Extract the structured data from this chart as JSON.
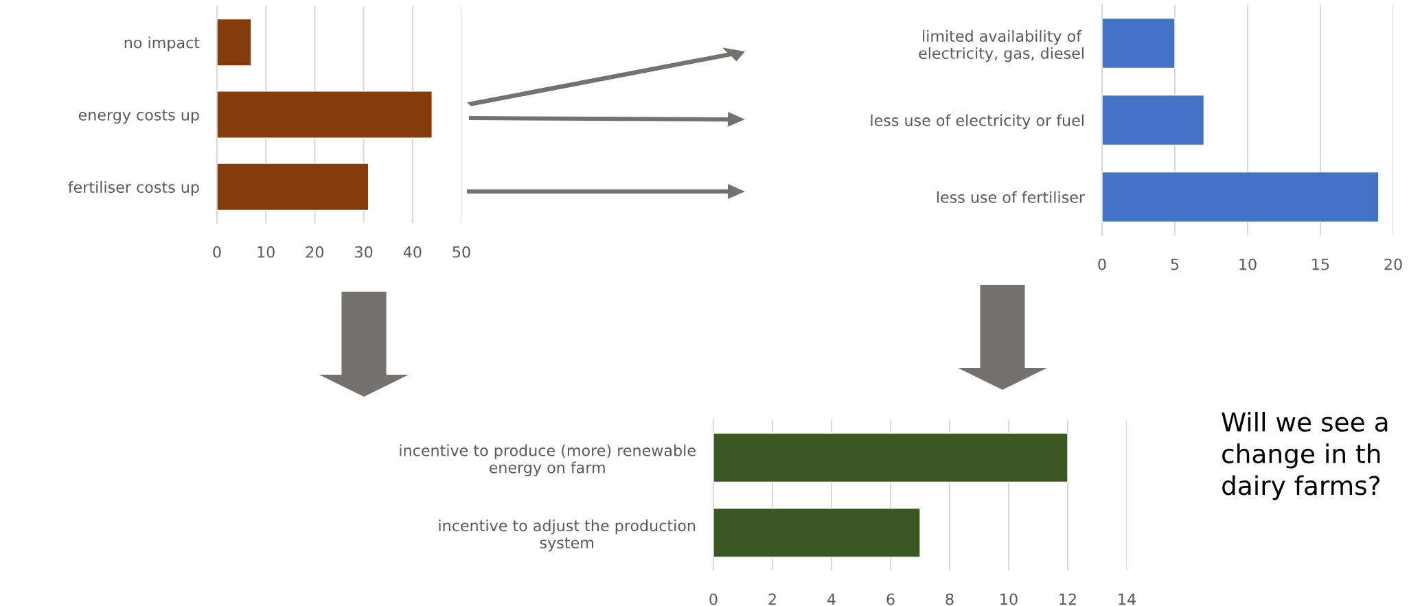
{
  "chart_data": [
    {
      "type": "bar",
      "orientation": "horizontal",
      "categories": [
        "no impact",
        "energy costs up",
        "fertiliser costs up"
      ],
      "values": [
        7,
        44,
        31
      ],
      "color": "#843c0c",
      "xlim": [
        0,
        50
      ],
      "xticks": [
        0,
        10,
        20,
        30,
        40,
        50
      ],
      "grid": "x"
    },
    {
      "type": "bar",
      "orientation": "horizontal",
      "categories": [
        "limited availability of\nelectricity, gas, diesel",
        "less use of electricity or fuel",
        "less use of fertiliser"
      ],
      "values": [
        5,
        7,
        19
      ],
      "color": "#4472c4",
      "xlim": [
        0,
        20
      ],
      "xticks": [
        0,
        5,
        10,
        15,
        20
      ],
      "grid": "x"
    },
    {
      "type": "bar",
      "orientation": "horizontal",
      "categories": [
        "incentive to produce (more) renewable\nenergy on farm",
        "incentive to adjust the production\nsystem"
      ],
      "values": [
        12,
        7
      ],
      "color": "#385723",
      "xlim": [
        0,
        14
      ],
      "xticks": [
        0,
        2,
        4,
        6,
        8,
        10,
        12,
        14
      ],
      "grid": "x",
      "annotations": [
        "Will we see a\nchange in th\ndairy farms?"
      ]
    }
  ]
}
